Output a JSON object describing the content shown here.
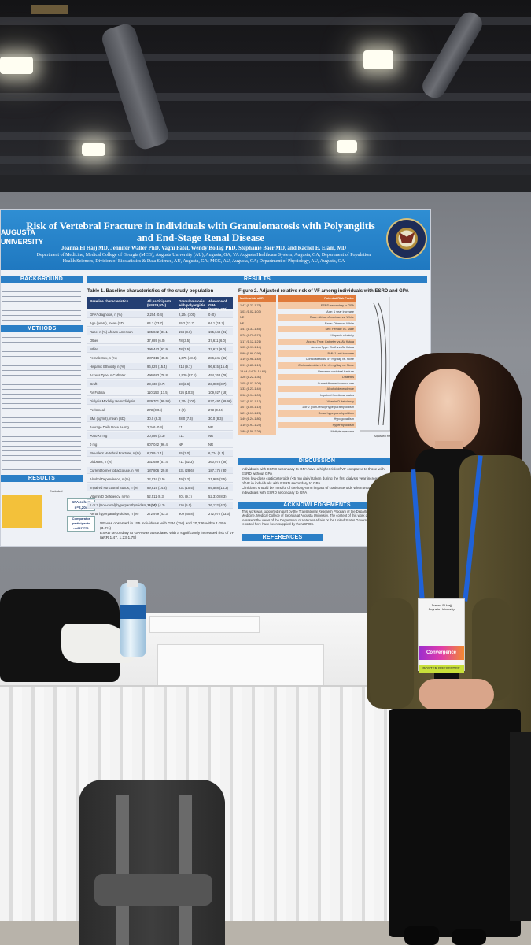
{
  "poster": {
    "title": "Risk of Vertebral Fracture in Individuals with Granulomatosis with Polyangiitis and End-Stage Renal Disease",
    "authors": "Joanna El Hajj MD, Jennifer Waller PhD, Vagni Patel, Wendy Bollag PhD, Stephanie Baer MD, and Rachel E. Elam, MD",
    "affiliations": "Department of Medicine, Medical College of Georgia (MCG), Augusta University (AU), Augusta, GA; VA Augusta Healthcare System, Augusta, GA; Department of Population Health Sciences, Division of Biostatistics & Data Science, AU, Augusta, GA; MCG, AU, Augusta, GA; Department of Physiology, AU, Augusta, GA",
    "left_logo": "AUGUSTA UNIVERSITY",
    "sections": {
      "background": "BACKGROUND",
      "methods": "METHODS",
      "results_left": "RESULTS",
      "results": "RESULTS",
      "discussion": "DISCUSSION",
      "acknowledgements": "ACKNOWLEDGEMENTS",
      "references": "REFERENCES"
    },
    "table1_title": "Table 1. Baseline characteristics of the study population",
    "table1_headers": [
      "Baseline characteristics",
      "All participants (N=629,974)",
      "Granulomatosis with polyangiitis GPA (N=2,204)",
      "Absence of GPA (N=627,770)"
    ],
    "table1_rows": [
      [
        "GPA* diagnosis, n (%)",
        "2,204 (0.4)",
        "2,204 (100)",
        "0 (0)"
      ],
      [
        "Age (years), mean (SD)",
        "64.1 (13.7)",
        "65.2 (13.7)",
        "64.1 (13.7)"
      ],
      [
        "Race, n (%) African American",
        "195,842 (31.1)",
        "194 (8.8)",
        "195,648 (31)"
      ],
      [
        "Other",
        "37,689 (6.0)",
        "78 (3.5)",
        "37,611 (6.0)"
      ],
      [
        "White",
        "396,443 (62.9)",
        "78 (3.5)",
        "37,611 (6.0)"
      ],
      [
        "Female Sex, n (%)",
        "287,316 (45.6)",
        "1,075 (48.8)",
        "286,241 (46)"
      ],
      [
        "Hispanic Ethnicity, n (%)",
        "96,829 (15.4)",
        "214 (9.7)",
        "96,615 (15.4)"
      ],
      [
        "Access Type, n Catheter",
        "496,683 (78.8)",
        "1,920 (87.1)",
        "494,763 (79)"
      ],
      [
        "Graft",
        "23,138 (3.7)",
        "58 (2.6)",
        "23,080 (3.7)"
      ],
      [
        "AV Fistula",
        "110,153 (17.5)",
        "226 (10.3)",
        "109,927 (18)"
      ],
      [
        "Dialysis Modality Hemodialysis",
        "629,701 (99.96)",
        "2,204 (100)",
        "627,497 (99.96)"
      ],
      [
        "Peritoneal",
        "273 (0.04)",
        "0 (0)",
        "273 (0.04)"
      ],
      [
        "BMI (kg/m2), mean (SD)",
        "30.0 (8.3)",
        "28.0 (7.3)",
        "30.0 (8.3)"
      ],
      [
        "Average Daily Dose 5+ mg",
        "2,346 (0.4)",
        "<11",
        "NR"
      ],
      [
        ">0 to <5 mg",
        "20,586 (3.3)",
        "<11",
        "NR"
      ],
      [
        "0 mg",
        "607,042 (96.4)",
        "NR",
        "NR"
      ],
      [
        "Prevalent Vertebral Fracture, n (%)",
        "6,789 (1.1)",
        "65 (3.0)",
        "6,724 (1.1)"
      ],
      [
        "Diabetes, n (%)",
        "361,689 (57.4)",
        "711 (32.3)",
        "360,978 (58)"
      ],
      [
        "Current/former tobacco use, n (%)",
        "187,806 (29.8)",
        "631 (28.6)",
        "187,175 (30)"
      ],
      [
        "Alcohol Dependence, n (%)",
        "22,034 (3.5)",
        "49 (2.2)",
        "21,985 (3.5)"
      ],
      [
        "Impaired Functional Status, n (%)",
        "89,819 (14.3)",
        "231 (10.5)",
        "89,588 (14.3)"
      ],
      [
        "Vitamin D Deficiency, n (%)",
        "52,511 (8.3)",
        "201 (9.1)",
        "52,310 (8.3)"
      ],
      [
        "1 or 2 (Non-renal) hyperparathyroidism, n (%)",
        "26,242 (4.2)",
        "110 (5.0)",
        "26,132 (4.2)"
      ],
      [
        "Renal hyperparathyroidism, n (%)",
        "272,979 (43.3)",
        "909 (40.8)",
        "272,070 (43.3)"
      ]
    ],
    "fig2_title": "Figure 2. Adjusted relative risk of VF among individuals with ESRD and GPA",
    "fig2_headers": [
      "Multivariate aRR",
      "Potential Risk Factor"
    ],
    "fig2_rows": [
      [
        "1.47 (1.23-1.75)",
        "ESRD secondary to GPA"
      ],
      [
        "1.03 (1.02-1.03)",
        "Age: 1 year increase"
      ],
      [
        "NE",
        "Race: African American vs. White"
      ],
      [
        "NE",
        "Race: Other vs. White"
      ],
      [
        "1.41 (1.37-1.45)",
        "Sex: Female vs. Male"
      ],
      [
        "0.76 (0.73-0.79)",
        "Hispanic ethnicity"
      ],
      [
        "1.17 (1.12-1.21)",
        "Access Type: Catheter vs. AV fistula"
      ],
      [
        "1.05 (0.99-1.14)",
        "Access Type: Graft vs. AV fistula"
      ],
      [
        "0.99 (0.98-0.99)",
        "BMI: 1 unit increase"
      ],
      [
        "1.19 (0.98-1.44)",
        "Corticosteroids: 5+ mg/day vs. None"
      ],
      [
        "0.99 (0.85-1.13)",
        "Corticosteroids: >0 to <5 mg/day vs. None"
      ],
      [
        "15.64 (14.78-16.60)",
        "Prevalent vertebral fracture"
      ],
      [
        "1.26 (1.22-1.30)",
        "Diabetes"
      ],
      [
        "1.05 (1.02-1.09)",
        "Current/former tobacco use"
      ],
      [
        "1.33 (1.23-1.44)",
        "Alcohol dependence"
      ],
      [
        "0.98 (0.94-1.03)",
        "Impaired functional status"
      ],
      [
        "1.07 (1.02-1.13)",
        "Vitamin D deficiency"
      ],
      [
        "1.07 (1.00-1.14)",
        "1 or 2 (Non-renal) Hyperparathyroidism"
      ],
      [
        "1.21 (1.17-1.25)",
        "Renal hyperparathyroidism"
      ],
      [
        "1.49 (1.24-1.80)",
        "Hypogonadism"
      ],
      [
        "1.10 (0.97-1.24)",
        "Hyperthyroidism"
      ],
      [
        "1.89 (1.58-2.26)",
        "Multiple myeloma"
      ]
    ],
    "fig2_axis_label": "Adjusted RR (95% CI)",
    "discussion_bullets": [
      "Individuals with ESRD secondary to GPA have a higher risk of VF compared to those with ESRD without GPA",
      "Even low-dose corticosteroids (<5 mg daily) taken during the first dialysis year increased risk of VF in individuals with ESRD secondary to GPA",
      "Clinicians should be mindful of the long-term impact of corticosteroids when treating GPA in individuals with ESRD secondary to GPA"
    ],
    "acknowledgements_text": "This work was supported in part by the Translational Research Program of the Department of Medicine, Medical College of Georgia at Augusta University. The content of this work does not represent the views of the Department of Veterans Affairs or the United States Government. The data reported here have been supplied by the USRDS.",
    "results_bullets": [
      "VF was observed in 155 individuals with GPA (7%) and 20,236 without GPA (3.2%)",
      "ESRD secondary to GPA was associated with a significantly increased risk of VF (aRR 1.47, 1.23-1.75)"
    ],
    "flow_labels": {
      "gpa_cohort": "GPA cohort",
      "gpa_n": "n=2,204",
      "comparator": "Comparator participants",
      "comparator_n": "n=627,770",
      "excluded": "Excluded"
    }
  },
  "badge": {
    "name": "Joanna El Hajj",
    "org": "Augusta University",
    "role": "POSTER PRESENTER",
    "brand": "Convergence"
  },
  "colors": {
    "poster_blue": "#1f78c0",
    "table_header_navy": "#243f73",
    "fig_orange": "#e07a3a",
    "lanyard_blue": "#1f62d8",
    "blazer_olive": "#5e5431"
  }
}
